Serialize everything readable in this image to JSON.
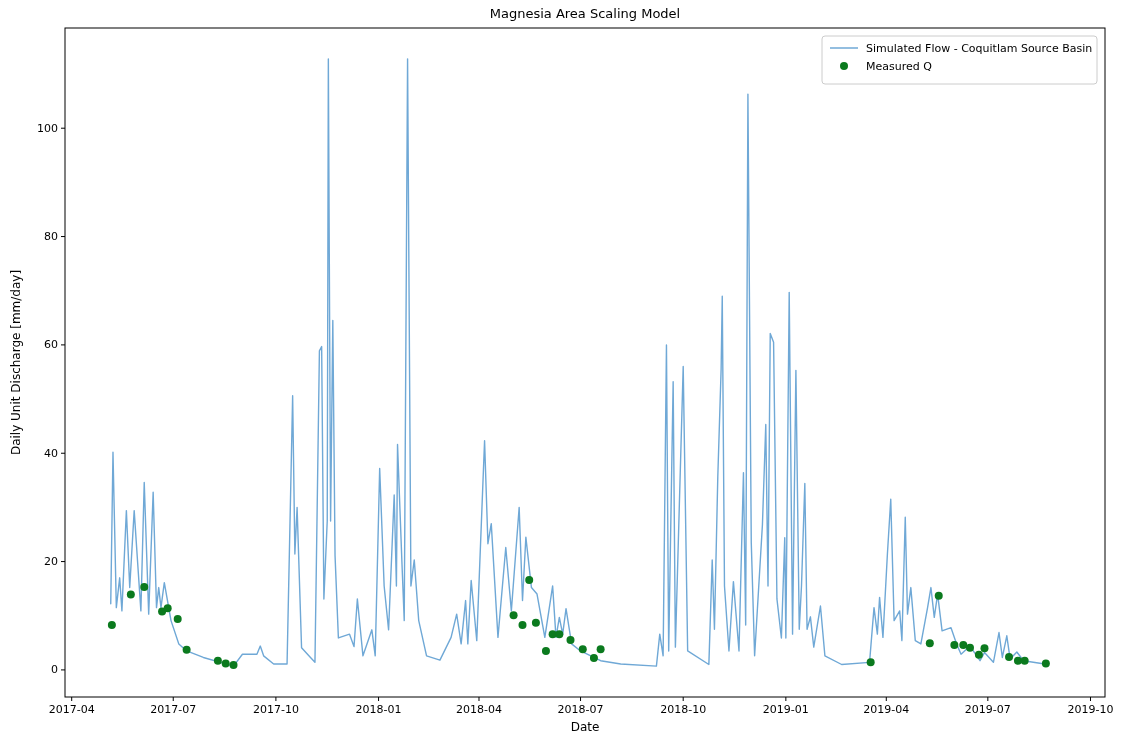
{
  "chart_data": {
    "type": "line",
    "title": "Magnesia Area Scaling Model",
    "xlabel": "Date",
    "ylabel": "Daily Unit Discharge [mm/day]",
    "xlim": [
      "2017-03-26",
      "2019-10-14"
    ],
    "ylim": [
      -5,
      118.5
    ],
    "xticks": [
      "2017-04",
      "2017-07",
      "2017-10",
      "2018-01",
      "2018-04",
      "2018-07",
      "2018-10",
      "2019-01",
      "2019-04",
      "2019-07",
      "2019-10"
    ],
    "yticks": [
      0,
      20,
      40,
      60,
      80,
      100
    ],
    "grid": false,
    "legend": "top right",
    "series": [
      {
        "name": "Simulated Flow - Coquitlam Source Basin",
        "color": "#6fa8d6",
        "marker": "none",
        "line_style": "solid",
        "x": [
          "2017-05-06",
          "2017-05-08",
          "2017-05-11",
          "2017-05-14",
          "2017-05-16",
          "2017-05-20",
          "2017-05-23",
          "2017-05-27",
          "2017-05-30",
          "2017-06-02",
          "2017-06-05",
          "2017-06-09",
          "2017-06-13",
          "2017-06-16",
          "2017-06-18",
          "2017-06-20",
          "2017-06-23",
          "2017-06-29",
          "2017-07-06",
          "2017-07-13",
          "2017-07-28",
          "2017-08-24",
          "2017-09-01",
          "2017-09-14",
          "2017-09-17",
          "2017-09-20",
          "2017-09-29",
          "2017-10-11",
          "2017-10-16",
          "2017-10-18",
          "2017-10-20",
          "2017-10-24",
          "2017-11-01",
          "2017-11-05",
          "2017-11-09",
          "2017-11-11",
          "2017-11-13",
          "2017-11-16",
          "2017-11-17",
          "2017-11-19",
          "2017-11-21",
          "2017-11-23",
          "2017-11-26",
          "2017-12-06",
          "2017-12-10",
          "2017-12-13",
          "2017-12-18",
          "2017-12-26",
          "2017-12-29",
          "2018-01-02",
          "2018-01-06",
          "2018-01-10",
          "2018-01-15",
          "2018-01-17",
          "2018-01-18",
          "2018-01-22",
          "2018-01-24",
          "2018-01-27",
          "2018-01-30",
          "2018-02-02",
          "2018-02-06",
          "2018-02-13",
          "2018-02-25",
          "2018-03-07",
          "2018-03-12",
          "2018-03-16",
          "2018-03-20",
          "2018-03-22",
          "2018-03-25",
          "2018-03-30",
          "2018-04-06",
          "2018-04-09",
          "2018-04-12",
          "2018-04-18",
          "2018-04-25",
          "2018-04-30",
          "2018-05-07",
          "2018-05-10",
          "2018-05-13",
          "2018-05-18",
          "2018-05-23",
          "2018-05-30",
          "2018-06-06",
          "2018-06-09",
          "2018-06-12",
          "2018-06-15",
          "2018-06-18",
          "2018-06-23",
          "2018-07-01",
          "2018-07-19",
          "2018-08-06",
          "2018-09-07",
          "2018-09-10",
          "2018-09-13",
          "2018-09-16",
          "2018-09-18",
          "2018-09-22",
          "2018-09-24",
          "2018-10-01",
          "2018-10-05",
          "2018-10-24",
          "2018-10-27",
          "2018-10-29",
          "2018-11-01",
          "2018-11-04",
          "2018-11-05",
          "2018-11-07",
          "2018-11-11",
          "2018-11-15",
          "2018-11-20",
          "2018-11-24",
          "2018-11-26",
          "2018-11-28",
          "2018-12-01",
          "2018-12-04",
          "2018-12-11",
          "2018-12-14",
          "2018-12-16",
          "2018-12-18",
          "2018-12-21",
          "2018-12-24",
          "2018-12-28",
          "2018-12-31",
          "2019-01-01",
          "2019-01-04",
          "2019-01-07",
          "2019-01-10",
          "2019-01-13",
          "2019-01-15",
          "2019-01-18",
          "2019-01-20",
          "2019-01-23",
          "2019-01-26",
          "2019-02-01",
          "2019-02-05",
          "2019-02-20",
          "2019-03-17",
          "2019-03-21",
          "2019-03-24",
          "2019-03-26",
          "2019-03-29",
          "2019-04-02",
          "2019-04-05",
          "2019-04-08",
          "2019-04-13",
          "2019-04-15",
          "2019-04-18",
          "2019-04-20",
          "2019-04-23",
          "2019-04-27",
          "2019-05-02",
          "2019-05-08",
          "2019-05-11",
          "2019-05-14",
          "2019-05-17",
          "2019-05-21",
          "2019-05-29",
          "2019-06-03",
          "2019-06-07",
          "2019-06-15",
          "2019-06-24",
          "2019-06-28",
          "2019-07-06",
          "2019-07-11",
          "2019-07-14",
          "2019-07-18",
          "2019-07-21",
          "2019-07-27",
          "2019-08-02",
          "2019-08-21"
        ],
        "values": [
          12.2,
          40.2,
          11.5,
          17,
          10.9,
          29.4,
          15.2,
          29.4,
          20.1,
          10.9,
          34.6,
          10.3,
          32.8,
          11.5,
          15.2,
          11.5,
          16.1,
          9.1,
          4.8,
          3.5,
          2.3,
          0.7,
          2.9,
          2.9,
          4.4,
          2.6,
          1.1,
          1.1,
          50.6,
          21.4,
          30,
          4.1,
          2.3,
          1.4,
          58.9,
          59.7,
          13.1,
          27.5,
          112.8,
          27.5,
          64.5,
          21.1,
          5.9,
          6.6,
          4.3,
          13.1,
          2.6,
          7.4,
          2.6,
          37.2,
          15.5,
          7.4,
          32.3,
          15.5,
          41.6,
          19.5,
          9.1,
          112.8,
          15.5,
          20.3,
          9.1,
          2.6,
          1.8,
          6,
          10.3,
          4.8,
          12.8,
          4.8,
          16.5,
          5.4,
          42.3,
          23.3,
          27,
          6,
          22.6,
          10.9,
          30,
          12.8,
          24.5,
          15.2,
          14,
          6,
          15.5,
          6,
          9.7,
          6.6,
          11.3,
          4.8,
          3.5,
          1.7,
          1.1,
          0.7,
          6.6,
          2.6,
          60,
          3.5,
          53.2,
          4.2,
          56,
          3.5,
          1,
          20.3,
          7.5,
          35.6,
          55.6,
          69,
          15.5,
          3.5,
          16.3,
          3.5,
          36.4,
          8.3,
          106.3,
          23.5,
          2.6,
          26.8,
          45.3,
          15.5,
          62.1,
          60.5,
          13.1,
          5.9,
          24.4,
          5.9,
          69.7,
          6.6,
          55.3,
          7.5,
          15.5,
          34.4,
          7.5,
          9.8,
          4.2,
          11.8,
          2.6,
          1,
          1.4,
          11.5,
          6.6,
          13.4,
          6,
          21.4,
          31.5,
          9.1,
          10.9,
          5.4,
          28.2,
          10.3,
          15.2,
          5.4,
          4.8,
          11.5,
          15.2,
          9.7,
          14,
          7.2,
          7.8,
          4.8,
          2.9,
          4.4,
          1.7,
          3.2,
          1.4,
          6.9,
          2.3,
          6.3,
          2,
          3.3,
          1.7,
          1.1
        ]
      },
      {
        "name": "Measured Q",
        "type": "scatter",
        "color": "#0b7a1e",
        "marker": "circle",
        "x": [
          "2017-05-07",
          "2017-05-24",
          "2017-06-05",
          "2017-06-21",
          "2017-06-26",
          "2017-07-05",
          "2017-07-13",
          "2017-08-10",
          "2017-08-17",
          "2017-08-24",
          "2018-05-02",
          "2018-05-10",
          "2018-05-16",
          "2018-05-22",
          "2018-05-31",
          "2018-06-06",
          "2018-06-12",
          "2018-06-22",
          "2018-07-03",
          "2018-07-13",
          "2018-07-19",
          "2019-03-18",
          "2019-05-10",
          "2019-05-18",
          "2019-06-01",
          "2019-06-09",
          "2019-06-15",
          "2019-06-23",
          "2019-06-28",
          "2019-07-20",
          "2019-07-28",
          "2019-08-03",
          "2019-08-22"
        ],
        "values": [
          8.3,
          13.9,
          15.3,
          10.8,
          11.4,
          9.4,
          3.7,
          1.7,
          1.2,
          0.9,
          10.1,
          8.3,
          16.6,
          8.7,
          3.5,
          6.6,
          6.6,
          5.5,
          3.8,
          2.2,
          3.8,
          1.4,
          4.9,
          13.7,
          4.6,
          4.6,
          4.1,
          2.8,
          4,
          2.4,
          1.7,
          1.7,
          1.2
        ]
      }
    ]
  }
}
